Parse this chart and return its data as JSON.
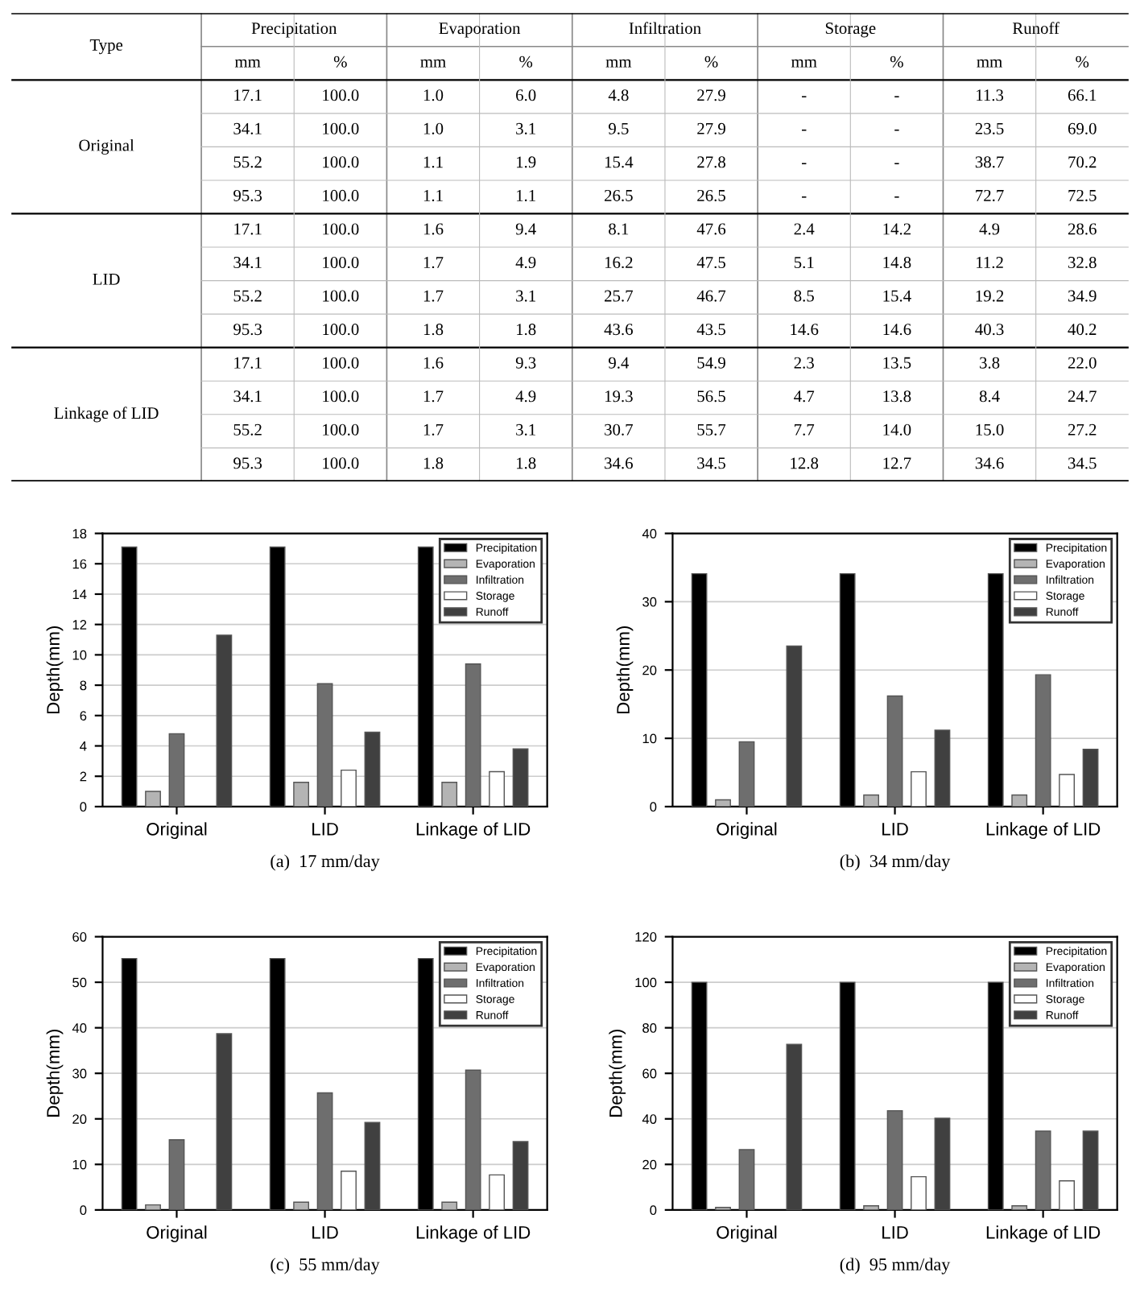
{
  "chart_data": [
    {
      "type": "other",
      "categories": [
        "Type",
        "Precipitation",
        "Evaporation",
        "Infiltration",
        "Storage",
        "Runoff"
      ],
      "y_categories": [
        "Original",
        "LID",
        "Linkage of LID"
      ],
      "cell_labels": [
        [
          "mm",
          "%",
          "mm",
          "%",
          "mm",
          "%",
          "mm",
          "%",
          "mm",
          "%"
        ],
        [
          "17.1",
          "100.0",
          "1.0",
          "6.0",
          "4.8",
          "27.9",
          "-",
          "-",
          "11.3",
          "66.1"
        ],
        [
          "34.1",
          "100.0",
          "1.0",
          "3.1",
          "9.5",
          "27.9",
          "-",
          "-",
          "23.5",
          "69.0"
        ],
        [
          "55.2",
          "100.0",
          "1.1",
          "1.9",
          "15.4",
          "27.8",
          "-",
          "-",
          "38.7",
          "70.2"
        ],
        [
          "95.3",
          "100.0",
          "1.1",
          "1.1",
          "26.5",
          "26.5",
          "-",
          "-",
          "72.7",
          "72.5"
        ],
        [
          "17.1",
          "100.0",
          "1.6",
          "9.4",
          "8.1",
          "47.6",
          "2.4",
          "14.2",
          "4.9",
          "28.6"
        ],
        [
          "34.1",
          "100.0",
          "1.7",
          "4.9",
          "16.2",
          "47.5",
          "5.1",
          "14.8",
          "11.2",
          "32.8"
        ],
        [
          "55.2",
          "100.0",
          "1.7",
          "3.1",
          "25.7",
          "46.7",
          "8.5",
          "15.4",
          "19.2",
          "34.9"
        ],
        [
          "95.3",
          "100.0",
          "1.8",
          "1.8",
          "43.6",
          "43.5",
          "14.6",
          "14.6",
          "40.3",
          "40.2"
        ],
        [
          "17.1",
          "100.0",
          "1.6",
          "9.3",
          "9.4",
          "54.9",
          "2.3",
          "13.5",
          "3.8",
          "22.0"
        ],
        [
          "34.1",
          "100.0",
          "1.7",
          "4.9",
          "19.3",
          "56.5",
          "4.7",
          "13.8",
          "8.4",
          "24.7"
        ],
        [
          "55.2",
          "100.0",
          "1.7",
          "3.1",
          "30.7",
          "55.7",
          "7.7",
          "14.0",
          "15.0",
          "27.2"
        ],
        [
          "95.3",
          "100.0",
          "1.8",
          "1.8",
          "34.6",
          "34.5",
          "12.8",
          "12.7",
          "34.6",
          "34.5"
        ]
      ]
    },
    {
      "type": "bar",
      "title": "(a)  17 mm/day",
      "ylabel": "Depth(mm)",
      "categories": [
        "Original",
        "LID",
        "Linkage of LID"
      ],
      "ylim": [
        0,
        18
      ],
      "yticks": [
        0,
        2,
        4,
        6,
        8,
        10,
        12,
        14,
        16,
        18
      ],
      "grid": "y",
      "legend": "top right",
      "series": [
        {
          "name": "Precipitation",
          "color": "#000000",
          "values": [
            17.1,
            17.1,
            17.1
          ]
        },
        {
          "name": "Evaporation",
          "color": "#b4b4b4",
          "values": [
            1.0,
            1.6,
            1.6
          ]
        },
        {
          "name": "Infiltration",
          "color": "#6e6e6e",
          "values": [
            4.8,
            8.1,
            9.4
          ]
        },
        {
          "name": "Storage",
          "color": "#ffffff",
          "values": [
            null,
            2.4,
            2.3
          ]
        },
        {
          "name": "Runoff",
          "color": "#404040",
          "values": [
            11.3,
            4.9,
            3.8
          ]
        }
      ]
    },
    {
      "type": "bar",
      "title": "(b)  34 mm/day",
      "ylabel": "Depth(mm)",
      "categories": [
        "Original",
        "LID",
        "Linkage of LID"
      ],
      "ylim": [
        0,
        40
      ],
      "yticks": [
        0,
        10,
        20,
        30,
        40
      ],
      "grid": "y",
      "legend": "top right",
      "series": [
        {
          "name": "Precipitation",
          "color": "#000000",
          "values": [
            34.1,
            34.1,
            34.1
          ]
        },
        {
          "name": "Evaporation",
          "color": "#b4b4b4",
          "values": [
            1.0,
            1.7,
            1.7
          ]
        },
        {
          "name": "Infiltration",
          "color": "#6e6e6e",
          "values": [
            9.5,
            16.2,
            19.3
          ]
        },
        {
          "name": "Storage",
          "color": "#ffffff",
          "values": [
            null,
            5.1,
            4.7
          ]
        },
        {
          "name": "Runoff",
          "color": "#404040",
          "values": [
            23.5,
            11.2,
            8.4
          ]
        }
      ]
    },
    {
      "type": "bar",
      "title": "(c)  55 mm/day",
      "ylabel": "Depth(mm)",
      "categories": [
        "Original",
        "LID",
        "Linkage of LID"
      ],
      "ylim": [
        0,
        60
      ],
      "yticks": [
        0,
        10,
        20,
        30,
        40,
        50,
        60
      ],
      "grid": "y",
      "legend": "top right",
      "series": [
        {
          "name": "Precipitation",
          "color": "#000000",
          "values": [
            55.2,
            55.2,
            55.2
          ]
        },
        {
          "name": "Evaporation",
          "color": "#b4b4b4",
          "values": [
            1.1,
            1.7,
            1.7
          ]
        },
        {
          "name": "Infiltration",
          "color": "#6e6e6e",
          "values": [
            15.4,
            25.7,
            30.7
          ]
        },
        {
          "name": "Storage",
          "color": "#ffffff",
          "values": [
            null,
            8.5,
            7.7
          ]
        },
        {
          "name": "Runoff",
          "color": "#404040",
          "values": [
            38.7,
            19.2,
            15.0
          ]
        }
      ]
    },
    {
      "type": "bar",
      "title": "(d)  95 mm/day",
      "ylabel": "Depth(mm)",
      "categories": [
        "Original",
        "LID",
        "Linkage of LID"
      ],
      "ylim": [
        0,
        120
      ],
      "yticks": [
        0,
        20,
        40,
        60,
        80,
        100,
        120
      ],
      "grid": "y",
      "legend": "top right",
      "series": [
        {
          "name": "Precipitation",
          "color": "#000000",
          "values": [
            100,
            100,
            100
          ]
        },
        {
          "name": "Evaporation",
          "color": "#b4b4b4",
          "values": [
            1.1,
            1.8,
            1.8
          ]
        },
        {
          "name": "Infiltration",
          "color": "#6e6e6e",
          "values": [
            26.5,
            43.6,
            34.6
          ]
        },
        {
          "name": "Storage",
          "color": "#ffffff",
          "values": [
            null,
            14.6,
            12.8
          ]
        },
        {
          "name": "Runoff",
          "color": "#404040",
          "values": [
            72.7,
            40.3,
            34.6
          ]
        }
      ]
    }
  ]
}
